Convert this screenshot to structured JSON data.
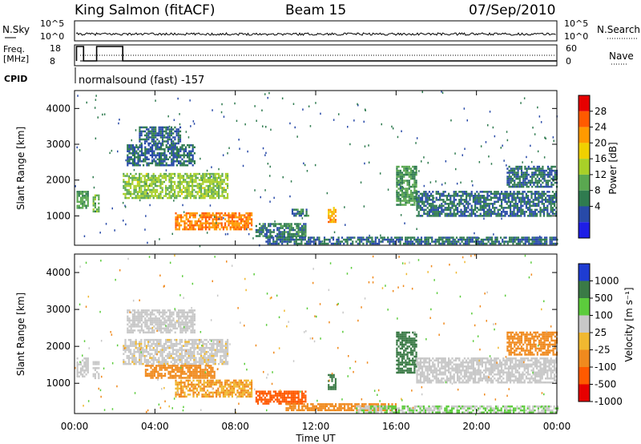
{
  "header": {
    "station": "King Salmon (fitACF)",
    "beam": "Beam 15",
    "date": "07/Sep/2010"
  },
  "summary": {
    "nsky_label": "N.Sky",
    "nsky_ticks": [
      "10^5",
      "10^0"
    ],
    "nsearch_label": "N.Search",
    "nsearch_ticks": [
      "10^5",
      "10^0"
    ],
    "freq_label_1": "Freq.",
    "freq_label_2": "[MHz]",
    "freq_ticks": [
      "18",
      "8"
    ],
    "nave_label": "Nave",
    "nave_ticks": [
      "60",
      "0"
    ],
    "cpid_label": "CPID",
    "cpid_text": "normalsound (fast) -157"
  },
  "panels": {
    "ylabel": "Slant Range [km]",
    "yticks": [
      "4000",
      "3000",
      "2000",
      "1000"
    ],
    "xlabel": "Time UT",
    "xticks": [
      "00:00",
      "04:00",
      "08:00",
      "12:00",
      "16:00",
      "20:00",
      "00:00"
    ]
  },
  "power_scale": {
    "label": "Power [dB]",
    "ticks": [
      "28",
      "24",
      "20",
      "16",
      "12",
      "8",
      "4"
    ],
    "colors": [
      "#e60000",
      "#ff5a00",
      "#ff9a00",
      "#f0d000",
      "#a8d028",
      "#5aa850",
      "#2f7b4f",
      "#284aa8",
      "#1e1ee6"
    ]
  },
  "velocity_scale": {
    "label": "Velocity [m s⁻¹]",
    "ticks": [
      "1000",
      "500",
      "100",
      "25",
      "-25",
      "-100",
      "-500",
      "-1000"
    ],
    "colors": [
      "#1e3cd2",
      "#3a7a46",
      "#5ccc3c",
      "#c8c8c8",
      "#f0b830",
      "#f08a1e",
      "#ff5a00",
      "#e60000"
    ]
  },
  "chart_data": [
    {
      "type": "heatmap",
      "title": "Power",
      "xlabel": "Time UT",
      "ylabel": "Slant Range [km]",
      "x_range_hours": [
        0,
        24
      ],
      "ylim": [
        180,
        4500
      ],
      "colorbar": {
        "label": "Power [dB]",
        "ticks": [
          4,
          8,
          12,
          16,
          20,
          24,
          28
        ],
        "range": [
          0,
          30
        ]
      },
      "features": [
        {
          "t0": 0.1,
          "t1": 0.7,
          "r0": 1200,
          "r1": 1700,
          "value": 10
        },
        {
          "t0": 0.9,
          "t1": 1.25,
          "r0": 1150,
          "r1": 1600,
          "value": 11
        },
        {
          "t0": 2.4,
          "t1": 7.6,
          "r0": 1500,
          "r1": 2200,
          "value": 14
        },
        {
          "t0": 2.6,
          "t1": 6.0,
          "r0": 2400,
          "r1": 3000,
          "value": 6
        },
        {
          "t0": 3.2,
          "t1": 5.3,
          "r0": 3000,
          "r1": 3500,
          "value": 5
        },
        {
          "t0": 5.0,
          "t1": 8.8,
          "r0": 650,
          "r1": 1100,
          "value": 24
        },
        {
          "t0": 9.0,
          "t1": 11.5,
          "r0": 430,
          "r1": 800,
          "value": 7
        },
        {
          "t0": 9.5,
          "t1": 24.0,
          "r0": 200,
          "r1": 420,
          "value": 6
        },
        {
          "t0": 10.8,
          "t1": 11.6,
          "r0": 1000,
          "r1": 1200,
          "value": 7
        },
        {
          "t0": 12.6,
          "t1": 13.0,
          "r0": 850,
          "r1": 1250,
          "value": 22
        },
        {
          "t0": 16.0,
          "t1": 17.0,
          "r0": 1300,
          "r1": 2400,
          "value": 10
        },
        {
          "t0": 17.0,
          "t1": 24.0,
          "r0": 1000,
          "r1": 1700,
          "value": 6
        },
        {
          "t0": 21.5,
          "t1": 24.0,
          "r0": 1800,
          "r1": 2400,
          "value": 6
        }
      ]
    },
    {
      "type": "heatmap",
      "title": "Velocity",
      "xlabel": "Time UT",
      "ylabel": "Slant Range [km]",
      "x_range_hours": [
        0,
        24
      ],
      "ylim": [
        180,
        4500
      ],
      "colorbar": {
        "label": "Velocity [m s-1]",
        "ticks": [
          1000,
          500,
          100,
          25,
          -25,
          -100,
          -500,
          -1000
        ]
      },
      "features": [
        {
          "t0": 0.1,
          "t1": 0.7,
          "r0": 1200,
          "r1": 1700,
          "value": 0
        },
        {
          "t0": 0.9,
          "t1": 1.25,
          "r0": 1150,
          "r1": 1600,
          "value": 0
        },
        {
          "t0": 2.4,
          "t1": 7.6,
          "r0": 1500,
          "r1": 2200,
          "value": -10
        },
        {
          "t0": 2.6,
          "t1": 6.0,
          "r0": 2400,
          "r1": 3000,
          "value": 0
        },
        {
          "t0": 3.5,
          "t1": 7.0,
          "r0": 1150,
          "r1": 1500,
          "value": -200
        },
        {
          "t0": 5.0,
          "t1": 8.8,
          "r0": 650,
          "r1": 1100,
          "value": -60
        },
        {
          "t0": 9.0,
          "t1": 11.5,
          "r0": 430,
          "r1": 800,
          "value": -300
        },
        {
          "t0": 10.5,
          "t1": 16.0,
          "r0": 250,
          "r1": 460,
          "value": -200
        },
        {
          "t0": 14.0,
          "t1": 24.0,
          "r0": 200,
          "r1": 400,
          "value": 60
        },
        {
          "t0": 12.6,
          "t1": 13.0,
          "r0": 850,
          "r1": 1250,
          "value": 300
        },
        {
          "t0": 16.0,
          "t1": 17.0,
          "r0": 1300,
          "r1": 2400,
          "value": 300
        },
        {
          "t0": 17.0,
          "t1": 24.0,
          "r0": 1000,
          "r1": 1700,
          "value": 0
        },
        {
          "t0": 21.5,
          "t1": 24.0,
          "r0": 1800,
          "r1": 2400,
          "value": -200
        }
      ]
    }
  ]
}
